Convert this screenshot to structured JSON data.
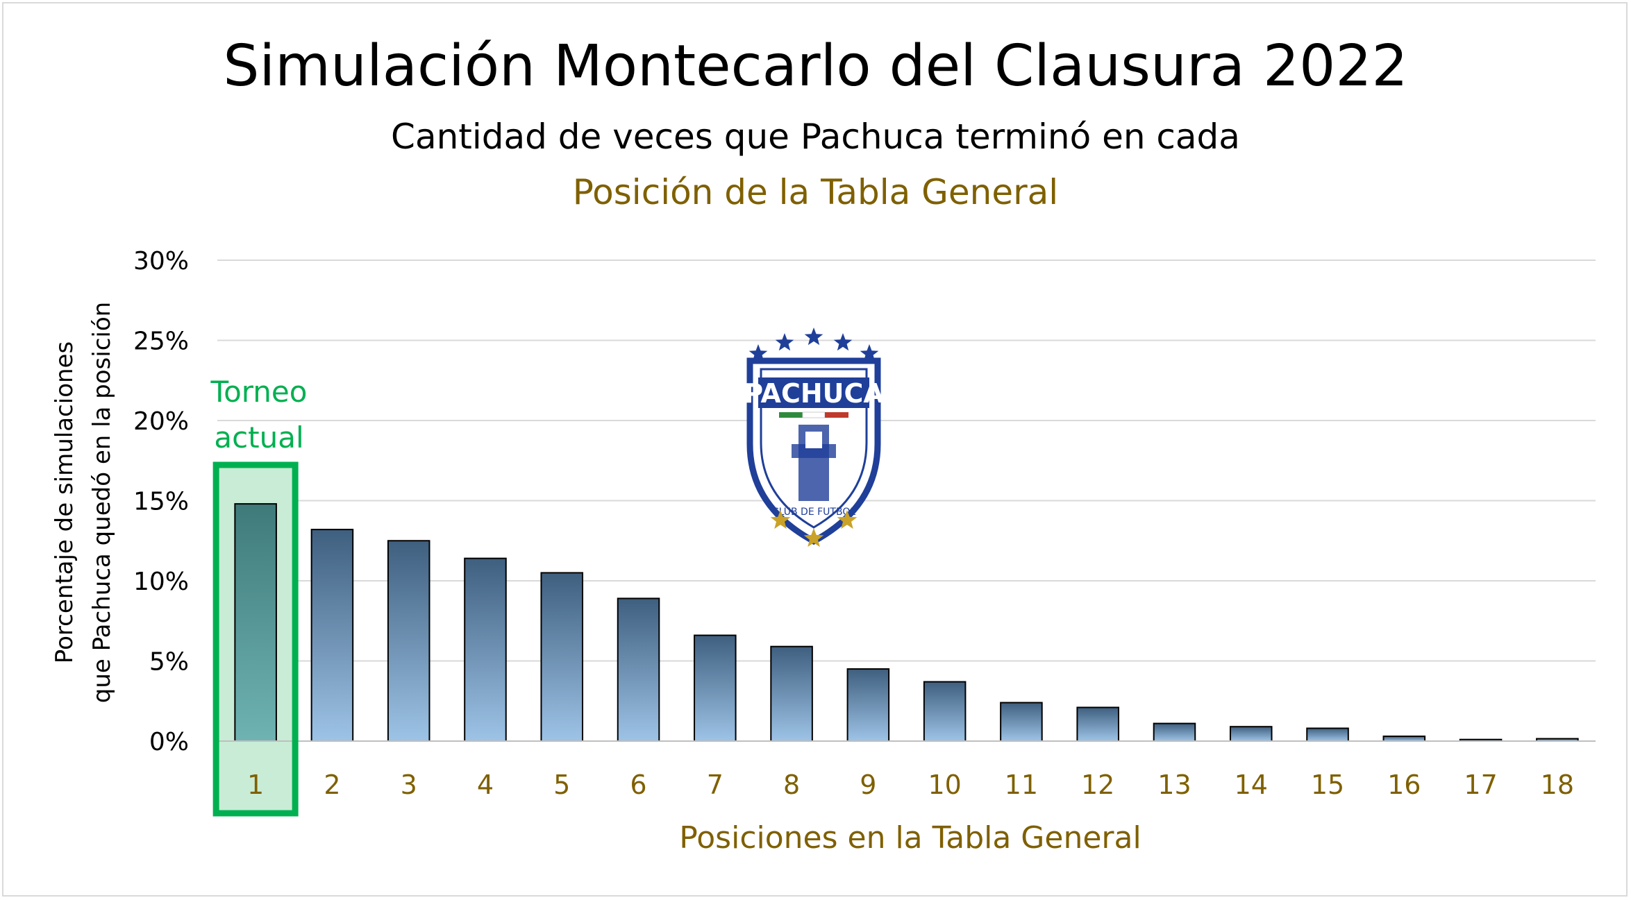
{
  "chart_data": {
    "type": "bar",
    "title": "Simulación Montecarlo del Clausura 2022",
    "subtitle_line1": "Cantidad de veces que Pachuca terminó en cada",
    "subtitle_line2": "Posición de la Tabla General",
    "xlabel": "Posiciones en la Tabla General",
    "ylabel_line1": "Porcentaje de simulaciones",
    "ylabel_line2": "que Pachuca quedó en la posición",
    "categories": [
      "1",
      "2",
      "3",
      "4",
      "5",
      "6",
      "7",
      "8",
      "9",
      "10",
      "11",
      "12",
      "13",
      "14",
      "15",
      "16",
      "17",
      "18"
    ],
    "values": [
      14.8,
      13.2,
      12.5,
      11.4,
      10.5,
      8.9,
      6.6,
      5.9,
      4.5,
      3.7,
      2.4,
      2.1,
      1.1,
      0.9,
      0.8,
      0.3,
      0.1,
      0.15
    ],
    "ylim": [
      0,
      30
    ],
    "yticks": [
      0,
      5,
      10,
      15,
      20,
      25,
      30
    ],
    "ytick_suffix": "%",
    "grid": true,
    "legend": "none",
    "annotation": {
      "line1": "Torneo",
      "line2": "actual",
      "category": "1"
    },
    "logo": {
      "text": "PACHUCA",
      "sub": "CLUB DE FUTBOL"
    },
    "colors": {
      "bar_top": "#3f5f7f",
      "bar_bottom": "#9dc3e6",
      "highlight_box": "#00b050",
      "highlight_fill": "#c9ecd6",
      "axis_text": "#7f6000",
      "grid": "#d9d9d9",
      "logo_blue": "#1f3f99",
      "logo_gold": "#c9a227"
    }
  }
}
